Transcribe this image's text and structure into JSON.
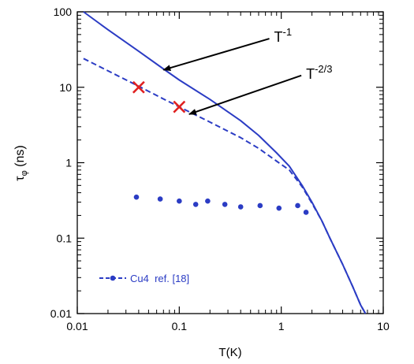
{
  "chart_data": {
    "type": "line",
    "xlabel": "T(K)",
    "ylabel_main": "τ",
    "ylabel_sub": "φ",
    "ylabel_unit": " (ns)",
    "xscale": "log",
    "yscale": "log",
    "xlim": [
      0.01,
      10
    ],
    "ylim": [
      0.01,
      100
    ],
    "x_ticks": [
      {
        "value": 0.01,
        "label": "0.01"
      },
      {
        "value": 0.1,
        "label": "0.1"
      },
      {
        "value": 1,
        "label": "1"
      },
      {
        "value": 10,
        "label": "10"
      }
    ],
    "y_ticks": [
      {
        "value": 0.01,
        "label": "0.01"
      },
      {
        "value": 0.1,
        "label": "0.1"
      },
      {
        "value": 1,
        "label": "1"
      },
      {
        "value": 10,
        "label": "10"
      },
      {
        "value": 100,
        "label": "100"
      }
    ],
    "grid": false,
    "series": [
      {
        "style": "solid",
        "color": "#2b3cc4",
        "x": [
          0.0115,
          0.02,
          0.04,
          0.07,
          0.1,
          0.2,
          0.4,
          0.6,
          0.9,
          1.2,
          1.6,
          2.0,
          2.5,
          3.0,
          4.0,
          5.0,
          6.0,
          6.7
        ],
        "y": [
          100,
          58,
          30,
          17.5,
          12.5,
          6.9,
          3.6,
          2.3,
          1.35,
          0.9,
          0.5,
          0.3,
          0.17,
          0.1,
          0.045,
          0.023,
          0.013,
          0.01
        ]
      },
      {
        "style": "dashed",
        "color": "#2b3cc4",
        "x": [
          0.0115,
          0.02,
          0.04,
          0.07,
          0.1,
          0.2,
          0.4,
          0.6,
          0.9,
          1.2,
          1.6,
          2.0,
          2.5,
          3.0,
          4.0,
          5.0,
          6.0,
          6.7
        ],
        "y": [
          24,
          16.5,
          10.3,
          7.0,
          5.5,
          3.45,
          2.15,
          1.55,
          1.05,
          0.8,
          0.48,
          0.29,
          0.17,
          0.1,
          0.045,
          0.023,
          0.013,
          0.01
        ]
      },
      {
        "name": "Cu4  ref. [18]",
        "style": "dotted-markers",
        "color": "#2b3cc4",
        "x": [
          0.038,
          0.065,
          0.1,
          0.145,
          0.19,
          0.28,
          0.4,
          0.62,
          0.95,
          1.45,
          1.75
        ],
        "y": [
          0.35,
          0.33,
          0.31,
          0.28,
          0.31,
          0.28,
          0.26,
          0.27,
          0.25,
          0.27,
          0.22
        ]
      }
    ],
    "crosses": {
      "color": "#e02020",
      "x": [
        0.04,
        0.1
      ],
      "y": [
        10,
        5.5
      ]
    },
    "annotations": [
      {
        "base": "T",
        "exp": "-1",
        "text_x": 0.85,
        "text_y": 40,
        "arrow_to_x": 0.07,
        "arrow_to_y": 17
      },
      {
        "base": "T",
        "exp": "-2/3",
        "text_x": 1.75,
        "text_y": 13,
        "arrow_to_x": 0.125,
        "arrow_to_y": 4.4
      }
    ],
    "legend": {
      "label": "Cu4  ref. [18]",
      "position": "bottom-left"
    }
  }
}
